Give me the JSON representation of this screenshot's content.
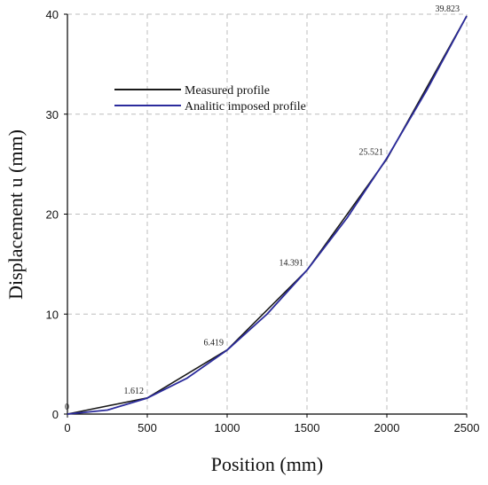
{
  "chart_data": {
    "type": "line",
    "xlabel": "Position (mm)",
    "ylabel": "Displacement u (mm)",
    "xlim": [
      0,
      2500
    ],
    "ylim": [
      0,
      40
    ],
    "x_ticks": [
      0,
      500,
      1000,
      1500,
      2000,
      2500
    ],
    "y_ticks": [
      0,
      10,
      20,
      30,
      40
    ],
    "grid": true,
    "legend_position": "upper-left",
    "series": [
      {
        "name": "Measured profile",
        "color": "#1a1a1a",
        "x": [
          0,
          500,
          1000,
          1500,
          2000,
          2500
        ],
        "y": [
          0,
          1.612,
          6.419,
          14.391,
          25.521,
          39.823
        ]
      },
      {
        "name": "Analitic imposed profile",
        "color": "#2b2b9c",
        "x": [
          0,
          250,
          500,
          750,
          1000,
          1250,
          1500,
          1750,
          2000,
          2250,
          2500
        ],
        "y": [
          0,
          0.4,
          1.6,
          3.6,
          6.4,
          10.0,
          14.4,
          19.6,
          25.6,
          32.4,
          39.823
        ]
      }
    ],
    "data_labels": [
      {
        "x": 0,
        "y": 0,
        "text": "0"
      },
      {
        "x": 500,
        "y": 1.612,
        "text": "1.612"
      },
      {
        "x": 1000,
        "y": 6.419,
        "text": "6.419"
      },
      {
        "x": 1500,
        "y": 14.391,
        "text": "14.391"
      },
      {
        "x": 2000,
        "y": 25.521,
        "text": "25.521"
      },
      {
        "x": 2500,
        "y": 39.823,
        "text": "39.823"
      }
    ]
  }
}
